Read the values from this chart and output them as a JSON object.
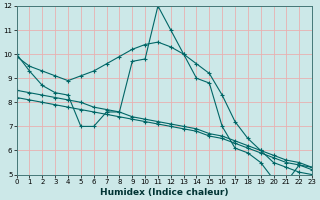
{
  "xlabel": "Humidex (Indice chaleur)",
  "bg_color": "#cce8e8",
  "grid_color": "#e8b0b0",
  "line_color": "#006666",
  "xlim": [
    0,
    23
  ],
  "ylim": [
    5,
    12
  ],
  "yticks": [
    5,
    6,
    7,
    8,
    9,
    10,
    11,
    12
  ],
  "xticks": [
    0,
    1,
    2,
    3,
    4,
    5,
    6,
    7,
    8,
    9,
    10,
    11,
    12,
    13,
    14,
    15,
    16,
    17,
    18,
    19,
    20,
    21,
    22,
    23
  ],
  "lines": [
    {
      "x": [
        0,
        1,
        2,
        3,
        4,
        5,
        6,
        7,
        8,
        9,
        10,
        11,
        12,
        13,
        14,
        15,
        16,
        17,
        18,
        19,
        20,
        21,
        22,
        23
      ],
      "y": [
        10.0,
        9.3,
        8.7,
        8.4,
        8.3,
        7.0,
        7.0,
        7.6,
        7.6,
        9.7,
        9.8,
        12.0,
        11.0,
        10.0,
        9.0,
        8.8,
        7.0,
        6.1,
        5.9,
        5.5,
        4.8,
        4.7,
        5.4,
        5.3
      ]
    },
    {
      "x": [
        0,
        1,
        2,
        3,
        4,
        5,
        6,
        7,
        8,
        9,
        10,
        11,
        12,
        13,
        14,
        15,
        16,
        17,
        18,
        19,
        20,
        21,
        22,
        23
      ],
      "y": [
        8.5,
        8.4,
        8.3,
        8.2,
        8.1,
        8.0,
        7.8,
        7.7,
        7.6,
        7.4,
        7.3,
        7.2,
        7.1,
        7.0,
        6.9,
        6.7,
        6.6,
        6.4,
        6.2,
        6.0,
        5.8,
        5.6,
        5.5,
        5.3
      ]
    },
    {
      "x": [
        0,
        1,
        2,
        3,
        4,
        5,
        6,
        7,
        8,
        9,
        10,
        11,
        12,
        13,
        14,
        15,
        16,
        17,
        18,
        19,
        20,
        21,
        22,
        23
      ],
      "y": [
        8.2,
        8.1,
        8.0,
        7.9,
        7.8,
        7.7,
        7.6,
        7.5,
        7.4,
        7.3,
        7.2,
        7.1,
        7.0,
        6.9,
        6.8,
        6.6,
        6.5,
        6.3,
        6.1,
        5.9,
        5.7,
        5.5,
        5.4,
        5.2
      ]
    },
    {
      "x": [
        0,
        1,
        2,
        3,
        4,
        5,
        6,
        7,
        8,
        9,
        10,
        11,
        12,
        13,
        14,
        15,
        16,
        17,
        18,
        19,
        20,
        21,
        22,
        23
      ],
      "y": [
        9.9,
        9.5,
        9.3,
        9.1,
        8.9,
        9.1,
        9.3,
        9.6,
        9.9,
        10.2,
        10.4,
        10.5,
        10.3,
        10.0,
        9.6,
        9.2,
        8.3,
        7.2,
        6.5,
        6.0,
        5.5,
        5.3,
        5.1,
        5.0
      ]
    }
  ]
}
